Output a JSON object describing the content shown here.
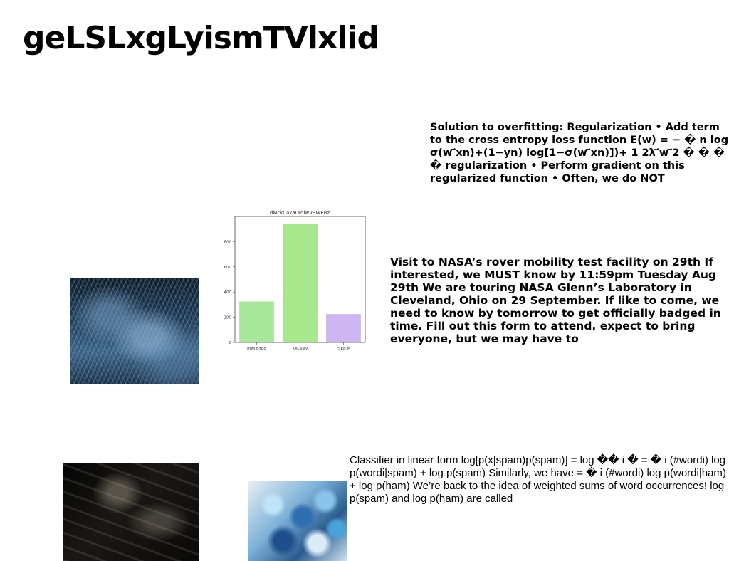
{
  "page": {
    "title": "geLSLxgLyismTVlxlid"
  },
  "text_blocks": {
    "regularization": "Solution to overfitting: Regularization • Add term to the cross entropy loss function E(w) = − � n log σ(w ⃗xn)+(1−yn) log[1−σ(w ⃗xn)])+ 1 2λ ⃗w ⃗2 � � � � regularization • Perform gradient on this regularized function • Often, we do NOT",
    "nasa": "Visit to NASA’s rover mobility test facility on 29th If interested, we MUST know by 11:59pm Tuesday Aug 29th We are touring NASA Glenn’s Laboratory in Cleveland, Ohio on 29 September. If like to come, we need to know by tomorrow to get officially badged in time. Fill out this form to attend. expect to bring everyone, but we may have to",
    "classifier": "Classifier in linear form log[p(x|spam)p(spam)] = log �� i � = � i (#wordi) log p(wordi|spam) + log p(spam) Similarly, we have = � i (#wordi) log p(wordi|ham) + log p(ham) We’re back to the idea of weighted sums of word occurrences! log p(spam) and log p(ham) are called"
  },
  "images": {
    "frost": "frost-plants-photo",
    "dark": "dark-abstract-photo",
    "floral": "blue-floral-photo"
  },
  "chart_data": {
    "type": "bar",
    "title": "dMckCakaDidlwVSWEBz",
    "categories": [
      "mwjjBYbq",
      "KXCVVV",
      "rSEB M"
    ],
    "values": [
      325,
      940,
      225
    ],
    "colors": [
      "#a8e89a",
      "#a8e88c",
      "#cdb6f2"
    ],
    "ylim": [
      0,
      1000
    ],
    "yticks": [
      0,
      200,
      400,
      600,
      800
    ],
    "xlabel": "",
    "ylabel": ""
  }
}
